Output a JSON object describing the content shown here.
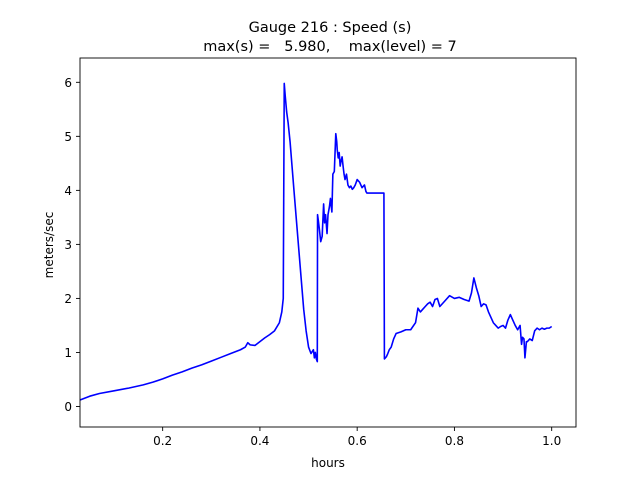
{
  "chart_data": {
    "type": "line",
    "title": "Gauge 216 : Speed (s)",
    "subtitle": "max(s) =   5.980,    max(level) = 7",
    "xlabel": "hours",
    "ylabel": "meters/sec",
    "xlim": [
      0.03,
      1.05
    ],
    "ylim": [
      -0.38,
      6.45
    ],
    "xticks": [
      0.2,
      0.4,
      0.6,
      0.8,
      1.0
    ],
    "xtick_labels": [
      "0.2",
      "0.4",
      "0.6",
      "0.8",
      "1.0"
    ],
    "yticks": [
      0,
      1,
      2,
      3,
      4,
      5,
      6
    ],
    "ytick_labels": [
      "0",
      "1",
      "2",
      "3",
      "4",
      "5",
      "6"
    ],
    "grid": false,
    "legend": "none",
    "colors": {
      "line": "#0000ff",
      "axes": "#000000",
      "background": "#ffffff"
    },
    "series": [
      {
        "x": [
          0.03,
          0.05,
          0.07,
          0.1,
          0.13,
          0.16,
          0.18,
          0.2,
          0.22,
          0.24,
          0.26,
          0.28,
          0.3,
          0.32,
          0.34,
          0.36,
          0.37,
          0.375,
          0.38,
          0.39,
          0.4,
          0.41,
          0.42,
          0.43,
          0.44,
          0.445,
          0.448,
          0.45,
          0.452,
          0.455,
          0.458,
          0.462,
          0.466,
          0.47,
          0.475,
          0.48,
          0.485,
          0.49,
          0.495,
          0.5,
          0.505,
          0.51,
          0.512,
          0.514,
          0.516,
          0.518,
          0.5185,
          0.52,
          0.522,
          0.525,
          0.528,
          0.531,
          0.533,
          0.535,
          0.538,
          0.54,
          0.543,
          0.545,
          0.548,
          0.55,
          0.553,
          0.556,
          0.558,
          0.559,
          0.561,
          0.563,
          0.565,
          0.567,
          0.569,
          0.571,
          0.573,
          0.575,
          0.578,
          0.581,
          0.584,
          0.587,
          0.59,
          0.593,
          0.596,
          0.6,
          0.605,
          0.61,
          0.615,
          0.618,
          0.62,
          0.622,
          0.625,
          0.63,
          0.635,
          0.64,
          0.645,
          0.65,
          0.655,
          0.656,
          0.658,
          0.66,
          0.663,
          0.666,
          0.67,
          0.675,
          0.68,
          0.69,
          0.7,
          0.71,
          0.72,
          0.725,
          0.73,
          0.735,
          0.74,
          0.745,
          0.75,
          0.755,
          0.76,
          0.765,
          0.77,
          0.78,
          0.79,
          0.8,
          0.81,
          0.82,
          0.83,
          0.835,
          0.84,
          0.845,
          0.85,
          0.855,
          0.86,
          0.865,
          0.87,
          0.875,
          0.88,
          0.885,
          0.89,
          0.895,
          0.9,
          0.905,
          0.91,
          0.915,
          0.92,
          0.925,
          0.93,
          0.935,
          0.938,
          0.94,
          0.943,
          0.945,
          0.948,
          0.95,
          0.955,
          0.96,
          0.965,
          0.97,
          0.975,
          0.98,
          0.985,
          0.99,
          0.995,
          1.0
        ],
        "y": [
          0.12,
          0.19,
          0.24,
          0.29,
          0.34,
          0.4,
          0.45,
          0.51,
          0.58,
          0.64,
          0.71,
          0.77,
          0.84,
          0.91,
          0.98,
          1.05,
          1.1,
          1.18,
          1.14,
          1.13,
          1.2,
          1.27,
          1.33,
          1.4,
          1.55,
          1.75,
          2.0,
          5.98,
          5.75,
          5.45,
          5.25,
          4.9,
          4.45,
          4.0,
          3.45,
          2.9,
          2.35,
          1.8,
          1.4,
          1.1,
          0.98,
          1.05,
          0.9,
          1.0,
          0.88,
          0.83,
          3.55,
          3.45,
          3.3,
          3.05,
          3.15,
          3.75,
          3.4,
          3.55,
          3.2,
          3.55,
          3.7,
          3.85,
          3.6,
          4.3,
          4.35,
          5.05,
          4.9,
          4.75,
          4.6,
          4.7,
          4.45,
          4.55,
          4.62,
          4.45,
          4.3,
          4.2,
          4.3,
          4.1,
          4.05,
          4.08,
          4.02,
          4.05,
          4.1,
          4.2,
          4.15,
          4.05,
          4.1,
          3.98,
          3.95,
          3.95,
          3.95,
          3.95,
          3.95,
          3.95,
          3.95,
          3.95,
          3.95,
          0.88,
          0.9,
          0.92,
          0.98,
          1.05,
          1.1,
          1.25,
          1.35,
          1.38,
          1.42,
          1.42,
          1.55,
          1.82,
          1.75,
          1.8,
          1.85,
          1.9,
          1.93,
          1.85,
          1.98,
          2.0,
          1.85,
          1.95,
          2.05,
          2.0,
          2.02,
          1.98,
          1.95,
          2.1,
          2.38,
          2.2,
          2.05,
          1.85,
          1.9,
          1.88,
          1.75,
          1.65,
          1.55,
          1.5,
          1.45,
          1.48,
          1.5,
          1.45,
          1.6,
          1.7,
          1.6,
          1.5,
          1.42,
          1.5,
          1.15,
          1.28,
          1.25,
          0.9,
          1.2,
          1.2,
          1.25,
          1.22,
          1.4,
          1.45,
          1.42,
          1.45,
          1.43,
          1.45,
          1.45,
          1.48
        ]
      }
    ]
  }
}
